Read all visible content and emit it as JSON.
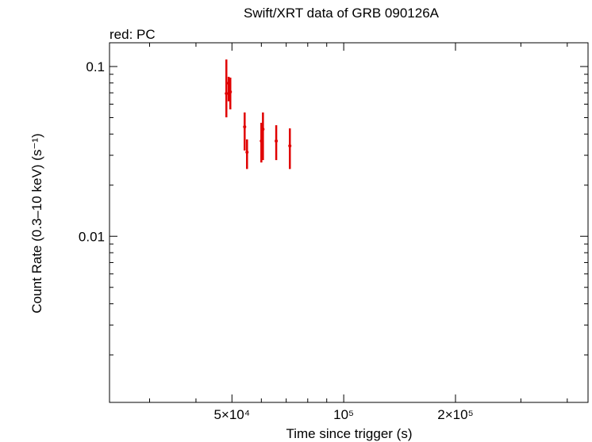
{
  "chart_data": {
    "type": "scatter",
    "title": "Swift/XRT data of GRB 090126A",
    "subtitle": "red: PC",
    "x_label": "Time since trigger (s)",
    "y_label": "Count Rate (0.3–10 keV) (s⁻¹)",
    "xscale": "log",
    "yscale": "log",
    "xlim": [
      23400,
      455000
    ],
    "ylim": [
      0.00105,
      0.138
    ],
    "xticks": [
      {
        "value": 50000,
        "label": "5×10⁴"
      },
      {
        "value": 100000,
        "label": "10⁵"
      },
      {
        "value": 200000,
        "label": "2×10⁵"
      }
    ],
    "xminorticks": [
      30000,
      40000,
      60000,
      70000,
      80000,
      90000,
      300000,
      400000
    ],
    "yticks": [
      0.01,
      0.1
    ],
    "yminorticks": [
      0.002,
      0.003,
      0.004,
      0.005,
      0.006,
      0.007,
      0.008,
      0.009,
      0.02,
      0.03,
      0.04,
      0.05,
      0.06,
      0.07,
      0.08,
      0.09
    ],
    "series": [
      {
        "name": "PC",
        "color": "#e00000",
        "x": [
          48300,
          49000,
          49500,
          54100,
          54900,
          60000,
          60600,
          65800,
          71600
        ],
        "values": [
          0.0694,
          0.0798,
          0.0709,
          0.0441,
          0.0313,
          0.0364,
          0.0427,
          0.0364,
          0.0341
        ],
        "ylow": [
          0.0502,
          0.0623,
          0.0559,
          0.032,
          0.0249,
          0.0272,
          0.0281,
          0.0281,
          0.0249
        ],
        "yhigh": [
          0.11,
          0.087,
          0.086,
          0.0536,
          0.0372,
          0.0466,
          0.0536,
          0.0451,
          0.0432
        ]
      }
    ]
  }
}
